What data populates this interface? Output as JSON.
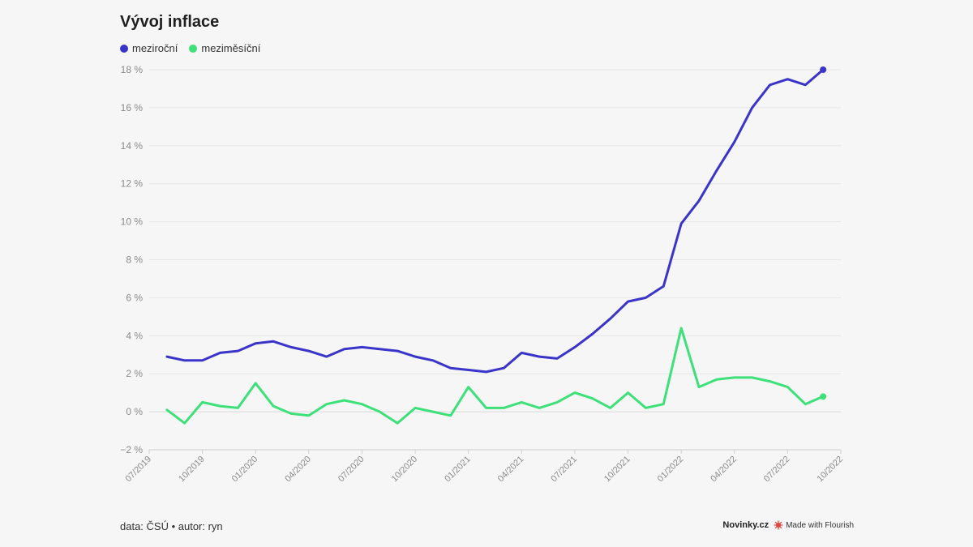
{
  "title": "Vývoj inflace",
  "footer": {
    "source": "data: ČSÚ • autor: ryn",
    "brand": "Novinky.cz",
    "flourish": "Made with Flourish"
  },
  "colors": {
    "mezirocni": "#3a34c9",
    "mezimesicni": "#3ee07a"
  },
  "chart_data": {
    "type": "line",
    "title": "Vývoj inflace",
    "xlabel": "",
    "ylabel": "",
    "ylim": [
      -2,
      18
    ],
    "y_ticks": [
      18,
      16,
      14,
      12,
      10,
      8,
      6,
      4,
      2,
      0,
      -2
    ],
    "y_tick_labels": [
      "18 %",
      "16 %",
      "14 %",
      "12 %",
      "10 %",
      "8 %",
      "6 %",
      "4 %",
      "2 %",
      "0 %",
      "−2 %"
    ],
    "x_tick_labels": [
      "07/2019",
      "10/2019",
      "01/2020",
      "04/2020",
      "07/2020",
      "10/2020",
      "01/2021",
      "04/2021",
      "07/2021",
      "10/2021",
      "01/2022",
      "04/2022",
      "07/2022",
      "10/2022"
    ],
    "x_start": "08/2019",
    "x_end": "09/2022",
    "series": [
      {
        "name": "meziroční",
        "values": [
          2.9,
          2.7,
          2.7,
          3.1,
          3.2,
          3.6,
          3.7,
          3.4,
          3.2,
          2.9,
          3.3,
          3.4,
          3.3,
          3.2,
          2.9,
          2.7,
          2.3,
          2.2,
          2.1,
          2.3,
          3.1,
          2.9,
          2.8,
          3.4,
          4.1,
          4.9,
          5.8,
          6.0,
          6.6,
          9.9,
          11.1,
          12.7,
          14.2,
          16.0,
          17.2,
          17.5,
          17.2,
          18.0
        ]
      },
      {
        "name": "meziměsíční",
        "values": [
          0.1,
          -0.6,
          0.5,
          0.3,
          0.2,
          1.5,
          0.3,
          -0.1,
          -0.2,
          0.4,
          0.6,
          0.4,
          0.0,
          -0.6,
          0.2,
          0.0,
          -0.2,
          1.3,
          0.2,
          0.2,
          0.5,
          0.2,
          0.5,
          1.0,
          0.7,
          0.2,
          1.0,
          0.2,
          0.4,
          4.4,
          1.3,
          1.7,
          1.8,
          1.8,
          1.6,
          1.3,
          0.4,
          0.8
        ]
      }
    ],
    "legend_position": "top-left"
  }
}
